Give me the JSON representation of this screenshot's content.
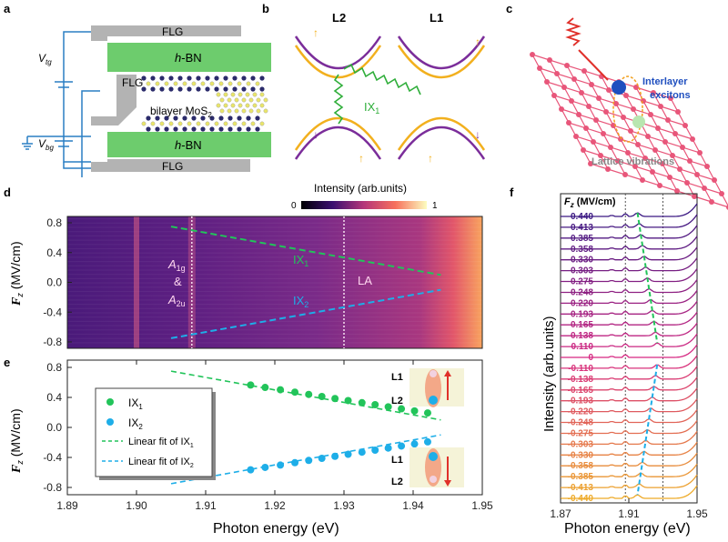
{
  "panel_labels": [
    "a",
    "b",
    "c",
    "d",
    "e",
    "f"
  ],
  "panel_a": {
    "layers": [
      "FLG",
      "h-BN",
      "FLG",
      "bilayer MoS",
      "h-BN",
      "FLG"
    ],
    "mos2_subscript": "2",
    "hbn_prefix": "h",
    "hbn_suffix": "-BN",
    "v_top": "V",
    "v_top_sub": "tg",
    "v_bottom": "V",
    "v_bottom_sub": "bg",
    "colors": {
      "flg": "#b3b3b3",
      "hbn": "#6dcc6d",
      "wire": "#2a7fc4",
      "mo": "#2b2b6b",
      "s": "#e9e56a"
    }
  },
  "panel_b": {
    "layer_left": "L2",
    "layer_right": "L1",
    "exciton": "IX",
    "exciton_sub": "1",
    "colors": {
      "band_a": "#f2b01e",
      "band_b": "#7b2d9a",
      "photon": "#2fae3a"
    }
  },
  "panel_c": {
    "label_interlayer_1": "Interlayer",
    "label_interlayer_2": "excitons",
    "label_vibrations": "Lattice vibrations",
    "colors": {
      "lattice": "#e8567a",
      "electron": "#1f4fbf",
      "hole": "#b9e6b0",
      "light": "#e0302a"
    }
  },
  "panel_d": {
    "colorbar_title": "Intensity (arb.units)",
    "colorbar_min": "0",
    "colorbar_max": "1",
    "ylabel": "F",
    "ylabel_sub": "z",
    "ylabel_unit": " (MV/cm)",
    "y_ticks": [
      "0.8",
      "0.4",
      "0.0",
      "-0.4",
      "-0.8"
    ],
    "annot_a1g": "A",
    "annot_a1g_sub": "1g",
    "annot_amp": "&",
    "annot_a2u": "A",
    "annot_a2u_sub": "2u",
    "annot_la": "LA",
    "annot_ix1": "IX",
    "annot_ix1_sub": "1",
    "annot_ix2": "IX",
    "annot_ix2_sub": "2",
    "vlines_eV": [
      1.908,
      1.93
    ]
  },
  "chart_data": [
    {
      "type": "scatter",
      "panel": "e",
      "xlabel": "Photon energy (eV)",
      "ylabel": "F_z (MV/cm)",
      "xlim": [
        1.89,
        1.95
      ],
      "ylim": [
        -0.8,
        0.8
      ],
      "x_ticks": [
        "1.89",
        "1.90",
        "1.91",
        "1.92",
        "1.93",
        "1.94",
        "1.95"
      ],
      "y_ticks": [
        "0.8",
        "0.4",
        "0.0",
        "-0.4",
        "-0.8"
      ],
      "legend": [
        "IX1",
        "IX2",
        "Linear fit of IX1",
        "Linear fit of IX2"
      ],
      "legend_loc": "left",
      "series": [
        {
          "name": "IX1",
          "color": "#22c45a",
          "x": [
            1.9165,
            1.9186,
            1.9208,
            1.9229,
            1.9249,
            1.9268,
            1.9287,
            1.9306,
            1.9326,
            1.9345,
            1.9364,
            1.9383,
            1.9402,
            1.9421
          ],
          "y": [
            0.565,
            0.533,
            0.502,
            0.47,
            0.44,
            0.412,
            0.385,
            0.358,
            0.33,
            0.303,
            0.275,
            0.248,
            0.22,
            0.193
          ]
        },
        {
          "name": "IX2",
          "color": "#1eaee8",
          "x": [
            1.9165,
            1.9186,
            1.9208,
            1.9229,
            1.9249,
            1.9268,
            1.9287,
            1.9306,
            1.9326,
            1.9345,
            1.9364,
            1.9383,
            1.9402,
            1.9421
          ],
          "y": [
            -0.565,
            -0.533,
            -0.502,
            -0.47,
            -0.44,
            -0.412,
            -0.385,
            -0.358,
            -0.33,
            -0.303,
            -0.275,
            -0.248,
            -0.22,
            -0.193
          ]
        }
      ],
      "fits": [
        {
          "name": "Linear fit of IX1",
          "color": "#22c45a",
          "x": [
            1.905,
            1.944
          ],
          "y": [
            0.75,
            0.1
          ]
        },
        {
          "name": "Linear fit of IX2",
          "color": "#1eaee8",
          "x": [
            1.905,
            1.944
          ],
          "y": [
            -0.75,
            -0.1
          ]
        }
      ],
      "insets": [
        "L1",
        "L2",
        "L1",
        "L2"
      ]
    },
    {
      "type": "line",
      "panel": "f",
      "xlabel": "Photon energy (eV)",
      "ylabel": "Intensity (arb.units)",
      "xlim": [
        1.87,
        1.95
      ],
      "x_ticks": [
        "1.87",
        "1.91",
        "1.95"
      ],
      "legend_title": "F",
      "legend_title_sub": "z",
      "legend_title_unit": " (MV/cm)",
      "field_values": [
        "0.440",
        "0.413",
        "0.385",
        "0.358",
        "0.330",
        "0.303",
        "0.275",
        "0.248",
        "0.220",
        "0.193",
        "0.165",
        "0.138",
        "0.110",
        "0",
        "-0.110",
        "-0.138",
        "-0.165",
        "-0.193",
        "-0.220",
        "-0.248",
        "-0.275",
        "-0.303",
        "-0.330",
        "-0.358",
        "-0.385",
        "-0.413",
        "-0.440"
      ],
      "vlines_eV": [
        1.908,
        1.93
      ]
    }
  ]
}
